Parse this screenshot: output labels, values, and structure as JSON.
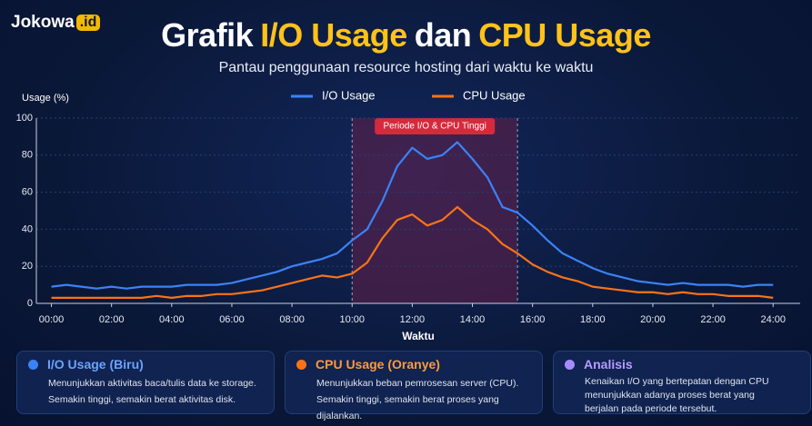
{
  "header": {
    "logo": "Jokowa",
    "logo_suffix": ".id",
    "title_parts": [
      "Grafik",
      "I/O Usage",
      "dan",
      "CPU Usage"
    ],
    "subtitle": "Pantau penggunaan resource hosting dari waktu ke waktu"
  },
  "chart_data": {
    "type": "line",
    "y_label": "Usage (%)",
    "x_label": "Waktu",
    "x": [
      0,
      0.5,
      1,
      1.5,
      2,
      2.5,
      3,
      3.5,
      4,
      4.5,
      5,
      5.5,
      6,
      6.5,
      7,
      7.5,
      8,
      8.5,
      9,
      9.5,
      10,
      10.5,
      11,
      11.5,
      12,
      12.5,
      13,
      13.5,
      14,
      14.5,
      15,
      15.5,
      16,
      16.5,
      17,
      17.5,
      18,
      18.5,
      19,
      19.5,
      20,
      20.5,
      21,
      21.5,
      22,
      22.5,
      23,
      23.5,
      24
    ],
    "series": [
      {
        "name": "I/O Usage",
        "color": "#3b82f6",
        "values": [
          9,
          10,
          9,
          8,
          9,
          8,
          9,
          9,
          9,
          10,
          10,
          10,
          11,
          13,
          15,
          17,
          20,
          22,
          24,
          27,
          34,
          40,
          55,
          74,
          84,
          78,
          80,
          87,
          78,
          68,
          52,
          49,
          42,
          34,
          27,
          23,
          19,
          16,
          14,
          12,
          11,
          10,
          11,
          10,
          10,
          10,
          9,
          10,
          10
        ]
      },
      {
        "name": "CPU Usage",
        "color": "#f97316",
        "values": [
          3,
          3,
          3,
          3,
          3,
          3,
          3,
          4,
          3,
          4,
          4,
          5,
          5,
          6,
          7,
          9,
          11,
          13,
          15,
          14,
          16,
          22,
          35,
          45,
          48,
          42,
          45,
          52,
          45,
          40,
          32,
          27,
          21,
          17,
          14,
          12,
          9,
          8,
          7,
          6,
          6,
          5,
          6,
          5,
          5,
          4,
          4,
          4,
          3
        ]
      }
    ],
    "xlim": [
      -0.5,
      24.9
    ],
    "ylim": [
      0,
      100
    ],
    "xticks": [
      {
        "value": 0,
        "label": "00:00"
      },
      {
        "value": 2,
        "label": "02:00"
      },
      {
        "value": 4,
        "label": "04:00"
      },
      {
        "value": 6,
        "label": "06:00"
      },
      {
        "value": 8,
        "label": "08:00"
      },
      {
        "value": 10,
        "label": "10:00"
      },
      {
        "value": 12,
        "label": "12:00"
      },
      {
        "value": 14,
        "label": "14:00"
      },
      {
        "value": 16,
        "label": "16:00"
      },
      {
        "value": 18,
        "label": "18:00"
      },
      {
        "value": 20,
        "label": "20:00"
      },
      {
        "value": 22,
        "label": "22:00"
      },
      {
        "value": 24,
        "label": "24:00"
      }
    ],
    "yticks": [
      0,
      20,
      40,
      60,
      80,
      100
    ],
    "grid": true,
    "highlight": {
      "range": [
        10,
        15.5
      ],
      "label": "Periode I/O & CPU Tinggi"
    }
  },
  "cards": [
    {
      "title": "I/O Usage (Biru)",
      "lines": [
        "Menunjukkan aktivitas baca/tulis data ke storage.",
        "Semakin tinggi, semakin berat aktivitas disk."
      ]
    },
    {
      "title": "CPU Usage (Oranye)",
      "lines": [
        "Menunjukkan beban pemrosesan server (CPU).",
        "Semakin tinggi, semakin berat proses yang dijalankan."
      ]
    },
    {
      "title": "Analisis",
      "lines": [
        "Kenaikan I/O yang bertepatan dengan CPU",
        "menunjukkan adanya proses berat yang",
        "berjalan pada periode tersebut."
      ]
    }
  ]
}
